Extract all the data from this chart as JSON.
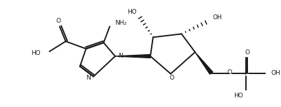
{
  "bg_color": "#ffffff",
  "lc": "#1a1a1a",
  "lw": 1.4,
  "fs": 6.5,
  "figsize": [
    4.09,
    1.56
  ],
  "dpi": 100,
  "xlim": [
    0,
    409
  ],
  "ylim": [
    0,
    156
  ]
}
